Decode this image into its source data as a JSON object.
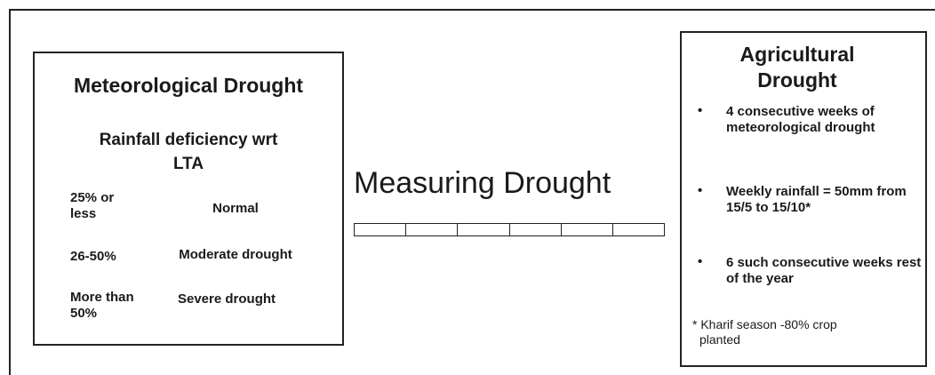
{
  "left_box": {
    "title": "Meteorological Drought",
    "subtitle": "Rainfall deficiency wrt LTA",
    "rows": [
      [
        "25% or less",
        "Normal"
      ],
      [
        "26-50%",
        "Moderate drought"
      ],
      [
        "More than 50%",
        "Severe drought"
      ]
    ]
  },
  "center": {
    "title": "Measuring Drought"
  },
  "right_box": {
    "title": "Agricultural Drought",
    "bullets": [
      "4 consecutive weeks of meteorological drought",
      "Weekly rainfall = 50mm from 15/5 to 15/10*",
      "6 such consecutive weeks rest of the year"
    ],
    "footnote": "* Kharif season -80% crop planted"
  }
}
